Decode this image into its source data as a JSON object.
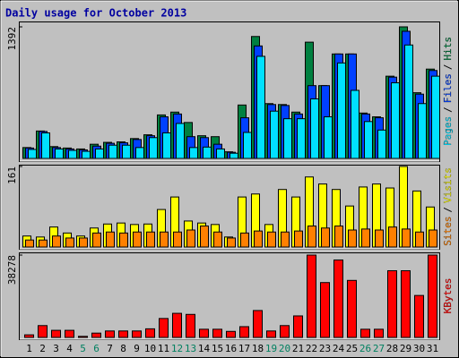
{
  "title": "Daily usage for October 2013",
  "chart_data": [
    {
      "type": "bar",
      "ylim": [
        0,
        1392
      ],
      "yticks": [
        1392
      ],
      "legend_separator": "/",
      "series": [
        {
          "name": "Hits",
          "color": "#008040",
          "values": [
            115,
            290,
            125,
            110,
            100,
            150,
            170,
            175,
            210,
            250,
            460,
            490,
            380,
            240,
            230,
            70,
            565,
            1290,
            580,
            570,
            490,
            1230,
            770,
            1105,
            1105,
            480,
            440,
            870,
            1392,
            695,
            945
          ]
        },
        {
          "name": "Files",
          "color": "#0040ff",
          "values": [
            110,
            285,
            115,
            100,
            90,
            130,
            160,
            165,
            200,
            240,
            440,
            470,
            230,
            220,
            150,
            65,
            430,
            1190,
            570,
            560,
            470,
            770,
            770,
            1105,
            1105,
            470,
            430,
            860,
            1345,
            680,
            930
          ]
        },
        {
          "name": "Pages",
          "color": "#00e0ff",
          "values": [
            95,
            270,
            100,
            85,
            75,
            100,
            140,
            140,
            115,
            220,
            270,
            370,
            115,
            120,
            100,
            55,
            275,
            1080,
            500,
            420,
            420,
            630,
            440,
            1010,
            720,
            390,
            300,
            800,
            1200,
            580,
            870
          ]
        }
      ]
    },
    {
      "type": "bar",
      "ylim": [
        0,
        161
      ],
      "yticks": [
        161
      ],
      "legend_separator": "/",
      "series": [
        {
          "name": "Visits",
          "color": "#ffff00",
          "values": [
            22,
            20,
            40,
            28,
            22,
            38,
            46,
            48,
            45,
            46,
            75,
            100,
            52,
            48,
            45,
            20,
            100,
            106,
            45,
            115,
            100,
            140,
            126,
            115,
            82,
            120,
            126,
            118,
            161,
            112,
            80
          ]
        },
        {
          "name": "Sites",
          "color": "#ff8000",
          "values": [
            14,
            14,
            22,
            18,
            18,
            28,
            30,
            28,
            30,
            30,
            30,
            30,
            34,
            42,
            30,
            18,
            28,
            32,
            30,
            30,
            32,
            42,
            38,
            42,
            34,
            36,
            34,
            40,
            36,
            30,
            34
          ]
        }
      ]
    },
    {
      "type": "bar",
      "ylim": [
        0,
        38278
      ],
      "yticks": [
        38278
      ],
      "legend_separator": "/",
      "series": [
        {
          "name": "KBytes",
          "color": "#ff0000",
          "values": [
            1200,
            5500,
            3300,
            3300,
            500,
            2000,
            3000,
            3000,
            3000,
            4000,
            8800,
            11200,
            10700,
            3800,
            3800,
            2800,
            5000,
            12500,
            3000,
            5500,
            10000,
            38278,
            25500,
            36000,
            26500,
            3800,
            3800,
            31000,
            31000,
            19500,
            38278
          ]
        }
      ],
      "categories": [
        "1",
        "2",
        "3",
        "4",
        "5",
        "6",
        "7",
        "8",
        "9",
        "10",
        "11",
        "12",
        "13",
        "14",
        "15",
        "16",
        "17",
        "18",
        "19",
        "20",
        "21",
        "22",
        "23",
        "24",
        "25",
        "26",
        "27",
        "28",
        "29",
        "30",
        "31"
      ],
      "weekend_categories": [
        "5",
        "6",
        "12",
        "13",
        "19",
        "20",
        "26",
        "27"
      ],
      "weekend_color": "#008060"
    }
  ]
}
